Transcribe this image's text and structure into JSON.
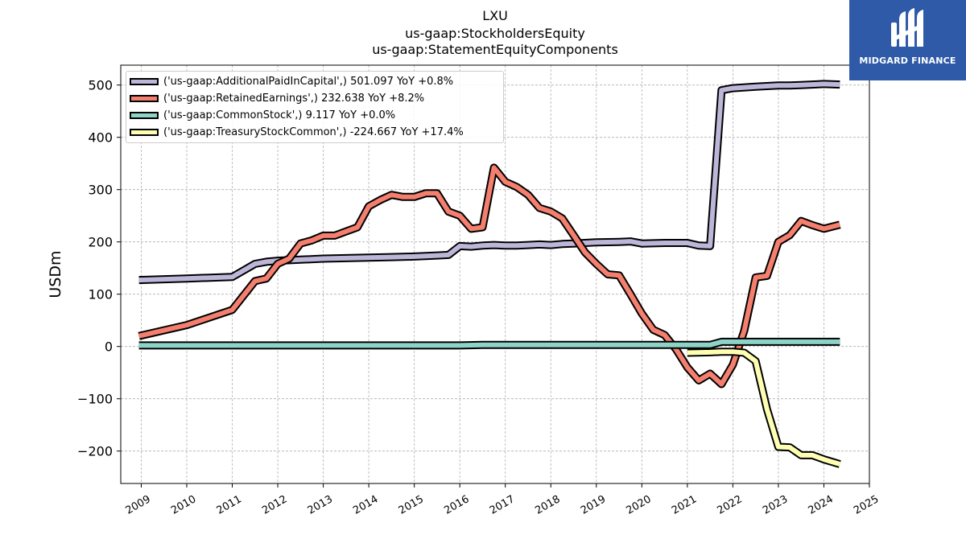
{
  "header": {
    "title_lines": [
      "LXU",
      "us-gaap:StockholdersEquity",
      "us-gaap:StatementEquityComponents"
    ]
  },
  "brand": {
    "name": "MIDGARD FINANCE",
    "background": "#2e5aa8",
    "icon": "midgard-logo-icon"
  },
  "chart_data": {
    "type": "line",
    "title": "LXU\nus-gaap:StockholdersEquity\nus-gaap:StatementEquityComponents",
    "xlabel": "",
    "ylabel": "USDm",
    "xlim": [
      2008.55,
      2025.0
    ],
    "ylim": [
      -262,
      538
    ],
    "x_ticks": [
      2009,
      2010,
      2011,
      2012,
      2013,
      2014,
      2015,
      2016,
      2017,
      2018,
      2019,
      2020,
      2021,
      2022,
      2023,
      2024,
      2025
    ],
    "y_ticks": [
      -200,
      -100,
      0,
      100,
      200,
      300,
      400,
      500
    ],
    "grid": true,
    "legend_position": "top-left",
    "series": [
      {
        "name": "('us-gaap:AdditionalPaidInCapital',) 501.097 YoY +0.8%",
        "color": "#bdb6d8",
        "x": [
          2008.95,
          2010.0,
          2011.0,
          2011.5,
          2011.75,
          2012.0,
          2012.5,
          2013.0,
          2013.5,
          2014.0,
          2014.5,
          2015.0,
          2015.5,
          2015.75,
          2016.0,
          2016.25,
          2016.5,
          2016.75,
          2017.0,
          2017.25,
          2017.5,
          2017.75,
          2018.0,
          2018.25,
          2018.5,
          2018.75,
          2019.0,
          2019.5,
          2019.75,
          2020.0,
          2020.5,
          2021.0,
          2021.25,
          2021.5,
          2021.75,
          2022.0,
          2022.5,
          2023.0,
          2023.25,
          2023.5,
          2024.0,
          2024.35
        ],
        "y": [
          127,
          130,
          133,
          158,
          162,
          164,
          166,
          168,
          169,
          170,
          171,
          172,
          174,
          175,
          192,
          191,
          193,
          194,
          193,
          193,
          194,
          195,
          194,
          196,
          197,
          198,
          199,
          200,
          201,
          197,
          198,
          198,
          193,
          192,
          490,
          494,
          497,
          499,
          499,
          500,
          502,
          501
        ]
      },
      {
        "name": "('us-gaap:RetainedEarnings',) 232.638 YoY +8.2%",
        "color": "#f47f6e",
        "x": [
          2008.95,
          2010.0,
          2011.0,
          2011.5,
          2011.75,
          2012.0,
          2012.25,
          2012.5,
          2012.75,
          2013.0,
          2013.25,
          2013.5,
          2013.75,
          2014.0,
          2014.25,
          2014.5,
          2014.75,
          2015.0,
          2015.25,
          2015.5,
          2015.75,
          2016.0,
          2016.25,
          2016.5,
          2016.75,
          2017.0,
          2017.25,
          2017.5,
          2017.75,
          2018.0,
          2018.25,
          2018.5,
          2018.75,
          2019.0,
          2019.25,
          2019.5,
          2019.75,
          2020.0,
          2020.25,
          2020.5,
          2020.75,
          2021.0,
          2021.25,
          2021.5,
          2021.75,
          2022.0,
          2022.25,
          2022.5,
          2022.75,
          2023.0,
          2023.25,
          2023.5,
          2023.75,
          2024.0,
          2024.35
        ],
        "y": [
          20,
          41,
          70,
          125,
          130,
          158,
          168,
          197,
          203,
          212,
          212,
          220,
          228,
          268,
          280,
          290,
          286,
          286,
          293,
          293,
          258,
          250,
          225,
          228,
          342,
          315,
          305,
          290,
          265,
          258,
          245,
          213,
          180,
          158,
          138,
          136,
          100,
          63,
          32,
          22,
          -5,
          -40,
          -65,
          -52,
          -72,
          -35,
          30,
          132,
          135,
          200,
          213,
          240,
          232,
          225,
          233
        ]
      },
      {
        "name": "('us-gaap:CommonStock',) 9.117 YoY +0.0%",
        "color": "#8dd3c7",
        "x": [
          2008.95,
          2012.0,
          2016.0,
          2016.5,
          2020.0,
          2021.5,
          2021.75,
          2024.35
        ],
        "y": [
          2,
          2,
          2,
          3,
          3,
          3,
          9,
          9
        ]
      },
      {
        "name": "('us-gaap:TreasuryStockCommon',) -224.667 YoY +17.4%",
        "color": "#ffffb3",
        "x": [
          2021.0,
          2021.5,
          2021.75,
          2022.0,
          2022.25,
          2022.5,
          2022.75,
          2023.0,
          2023.25,
          2023.5,
          2023.75,
          2024.0,
          2024.35
        ],
        "y": [
          -12,
          -11,
          -10,
          -10,
          -12,
          -28,
          -120,
          -192,
          -193,
          -208,
          -208,
          -216,
          -225
        ]
      }
    ]
  }
}
